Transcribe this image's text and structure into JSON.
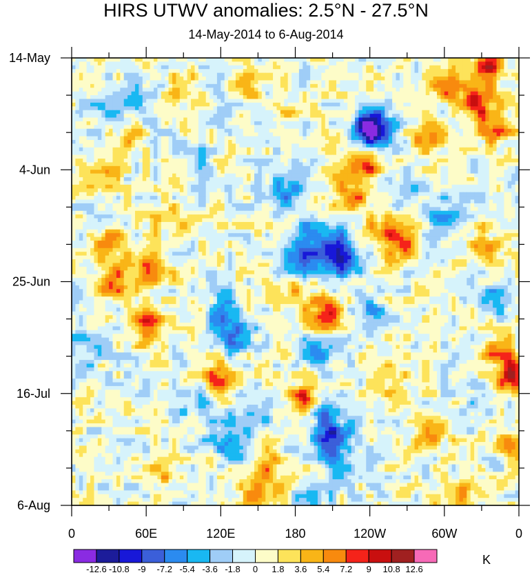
{
  "chart_data": {
    "type": "heatmap",
    "title": "HIRS UTWV anomalies: 2.5°N - 27.5°N",
    "subtitle": "14-May-2014 to 6-Aug-2014",
    "x_ticks": [
      "0",
      "60E",
      "120E",
      "180",
      "120W",
      "60W",
      "0"
    ],
    "x_tick_values": [
      0,
      60,
      120,
      180,
      240,
      300,
      360
    ],
    "x_range": [
      0,
      360
    ],
    "y_ticks": [
      "14-May",
      "4-Jun",
      "25-Jun",
      "16-Jul",
      "6-Aug"
    ],
    "y_tick_values": [
      0,
      21,
      42,
      63,
      84
    ],
    "y_range_days": [
      0,
      84
    ],
    "colorbar_labels": [
      "-12.6",
      "-10.8",
      "-9",
      "-7.2",
      "-5.4",
      "-3.6",
      "-1.8",
      "0",
      "1.8",
      "3.6",
      "5.4",
      "7.2",
      "9",
      "10.8",
      "12.6"
    ],
    "colorbar_colors": [
      "#8a2be2",
      "#1c1c9a",
      "#1818d8",
      "#3b5fd9",
      "#2b8bf0",
      "#19b8f2",
      "#9fcdf7",
      "#d6f3fb",
      "#fdfcc8",
      "#fde35a",
      "#f9b517",
      "#f88a0e",
      "#f5231a",
      "#c90f0f",
      "#a02020",
      "#f76ab7"
    ],
    "colorbar_units": "K",
    "anomaly_blobs": [
      {
        "lon": 65,
        "day": 40,
        "value": 8.0
      },
      {
        "lon": 35,
        "day": 42,
        "value": 7.0
      },
      {
        "lon": 60,
        "day": 50,
        "value": 8.0
      },
      {
        "lon": 30,
        "day": 35,
        "value": 5.0
      },
      {
        "lon": 80,
        "day": 30,
        "value": 5.0
      },
      {
        "lon": 20,
        "day": 22,
        "value": 4.5
      },
      {
        "lon": 45,
        "day": 15,
        "value": 4.0
      },
      {
        "lon": 30,
        "day": 10,
        "value": -5.0
      },
      {
        "lon": 55,
        "day": 8,
        "value": -4.0
      },
      {
        "lon": 10,
        "day": 55,
        "value": -3.0
      },
      {
        "lon": 125,
        "day": 48,
        "value": -4.5
      },
      {
        "lon": 130,
        "day": 52,
        "value": -7.0
      },
      {
        "lon": 118,
        "day": 60,
        "value": 7.0
      },
      {
        "lon": 145,
        "day": 68,
        "value": -4.0
      },
      {
        "lon": 125,
        "day": 72,
        "value": -5.0
      },
      {
        "lon": 160,
        "day": 77,
        "value": 4.0
      },
      {
        "lon": 150,
        "day": 82,
        "value": 5.0
      },
      {
        "lon": 170,
        "day": 10,
        "value": 3.0
      },
      {
        "lon": 180,
        "day": 22,
        "value": -3.5
      },
      {
        "lon": 170,
        "day": 25,
        "value": -4.5
      },
      {
        "lon": 190,
        "day": 33,
        "value": -5.0
      },
      {
        "lon": 185,
        "day": 38,
        "value": -6.0
      },
      {
        "lon": 180,
        "day": 44,
        "value": 5.0
      },
      {
        "lon": 205,
        "day": 48,
        "value": 7.5
      },
      {
        "lon": 200,
        "day": 55,
        "value": -5.5
      },
      {
        "lon": 188,
        "day": 64,
        "value": 7.5
      },
      {
        "lon": 205,
        "day": 66,
        "value": -6.0
      },
      {
        "lon": 210,
        "day": 71,
        "value": -9.0
      },
      {
        "lon": 215,
        "day": 76,
        "value": -5.0
      },
      {
        "lon": 195,
        "day": 83,
        "value": -4.0
      },
      {
        "lon": 210,
        "day": 35,
        "value": -6.5
      },
      {
        "lon": 215,
        "day": 38,
        "value": -10.0
      },
      {
        "lon": 235,
        "day": 20,
        "value": 8.5
      },
      {
        "lon": 225,
        "day": 26,
        "value": 7.0
      },
      {
        "lon": 240,
        "day": 12,
        "value": -7.0
      },
      {
        "lon": 243,
        "day": 14,
        "value": -10.0
      },
      {
        "lon": 250,
        "day": 32,
        "value": 5.0
      },
      {
        "lon": 265,
        "day": 35,
        "value": 6.5
      },
      {
        "lon": 270,
        "day": 25,
        "value": -3.5
      },
      {
        "lon": 240,
        "day": 48,
        "value": -4.5
      },
      {
        "lon": 260,
        "day": 60,
        "value": 4.0
      },
      {
        "lon": 290,
        "day": 70,
        "value": 6.0
      },
      {
        "lon": 310,
        "day": 82,
        "value": 5.0
      },
      {
        "lon": 300,
        "day": 5,
        "value": 6.0
      },
      {
        "lon": 325,
        "day": 8,
        "value": 9.0
      },
      {
        "lon": 340,
        "day": 13,
        "value": 7.0
      },
      {
        "lon": 335,
        "day": 2,
        "value": 8.5
      },
      {
        "lon": 285,
        "day": 15,
        "value": 5.0
      },
      {
        "lon": 300,
        "day": 30,
        "value": -4.0
      },
      {
        "lon": 330,
        "day": 35,
        "value": 4.5
      },
      {
        "lon": 340,
        "day": 45,
        "value": -3.5
      },
      {
        "lon": 345,
        "day": 55,
        "value": 5.5
      },
      {
        "lon": 355,
        "day": 60,
        "value": 9.5
      },
      {
        "lon": 330,
        "day": 65,
        "value": -3.5
      },
      {
        "lon": 350,
        "day": 72,
        "value": 4.0
      },
      {
        "lon": 100,
        "day": 65,
        "value": -3.0
      },
      {
        "lon": 100,
        "day": 20,
        "value": -3.0
      },
      {
        "lon": 90,
        "day": 5,
        "value": 3.5
      },
      {
        "lon": 140,
        "day": 5,
        "value": 3.0
      },
      {
        "lon": 75,
        "day": 78,
        "value": 3.5
      }
    ]
  }
}
